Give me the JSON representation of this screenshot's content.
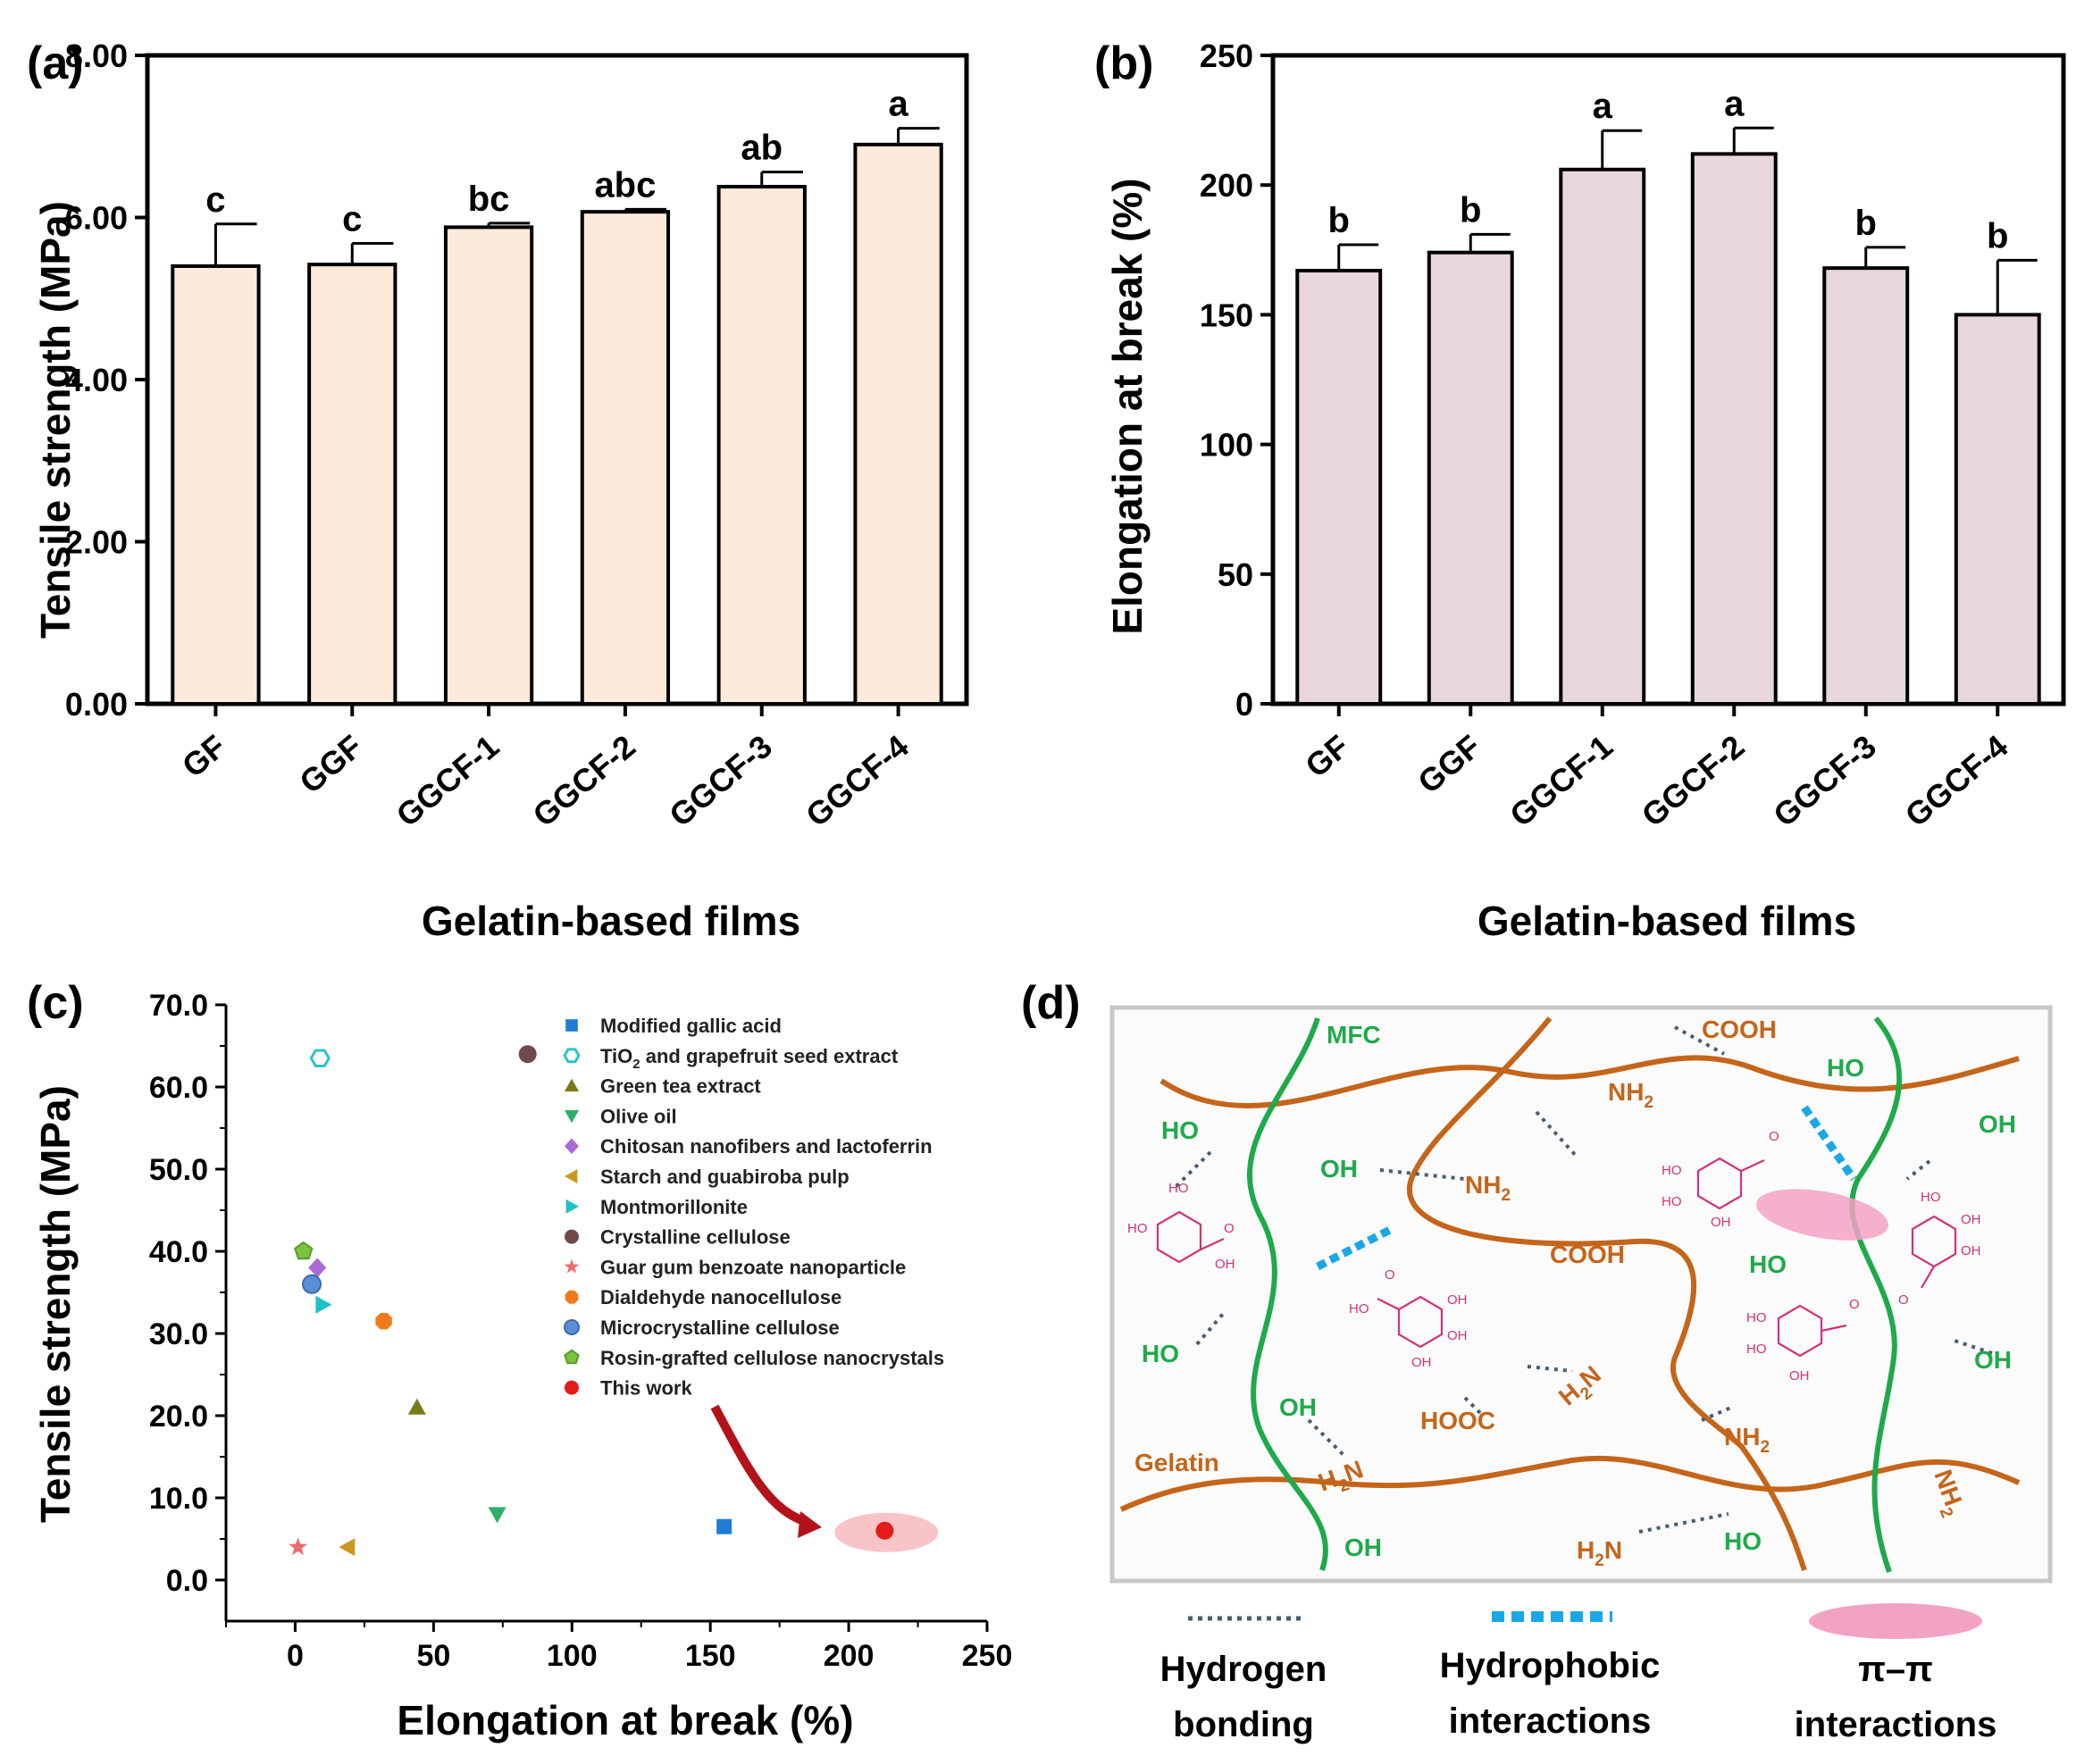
{
  "panels": [
    "(a)",
    "(b)",
    "(c)",
    "(d)"
  ],
  "chart_data": [
    {
      "id": "a",
      "type": "bar",
      "categories": [
        "GF",
        "GGF",
        "GGCF-1",
        "GGCF-2",
        "GGCF-3",
        "GGCF-4"
      ],
      "values": [
        5.4,
        5.42,
        5.88,
        6.07,
        6.38,
        6.9
      ],
      "errors": [
        0.52,
        0.26,
        0.05,
        0.03,
        0.18,
        0.2
      ],
      "letters": [
        "c",
        "c",
        "bc",
        "abc",
        "ab",
        "a"
      ],
      "ylim": [
        0,
        8
      ],
      "yticks": [
        "0.00",
        "2.00",
        "4.00",
        "6.00",
        "8.00"
      ],
      "xlabel": "Gelatin-based films",
      "ylabel": "Tensile strength (MPa)",
      "bar_color": "#fdeadb"
    },
    {
      "id": "b",
      "type": "bar",
      "categories": [
        "GF",
        "GGF",
        "GGCF-1",
        "GGCF-2",
        "GGCF-3",
        "GGCF-4"
      ],
      "values": [
        167,
        174,
        206,
        212,
        168,
        150
      ],
      "errors": [
        10,
        7,
        15,
        10,
        8,
        21
      ],
      "letters": [
        "b",
        "b",
        "a",
        "a",
        "b",
        "b"
      ],
      "ylim": [
        0,
        250
      ],
      "yticks": [
        "0",
        "50",
        "100",
        "150",
        "200",
        "250"
      ],
      "xlabel": "Gelatin-based films",
      "ylabel": "Elongation at break (%)",
      "bar_color": "#e8d6de"
    },
    {
      "id": "c",
      "type": "scatter",
      "xlabel": "Elongation at break (%)",
      "ylabel": "Tensile strength (MPa)",
      "xlim": [
        -25,
        250
      ],
      "ylim": [
        -5,
        70
      ],
      "xticks": [
        "0",
        "50",
        "100",
        "150",
        "200",
        "250"
      ],
      "yticks": [
        "0.0",
        "10.0",
        "20.0",
        "30.0",
        "40.0",
        "50.0",
        "60.0",
        "70.0"
      ],
      "series": [
        {
          "name": "Modified gallic acid",
          "marker": "square",
          "color": "#1f7bd6",
          "x": 155,
          "y": 6.5
        },
        {
          "name": "TiO2 and grapefruit seed extract",
          "marker": "hex-open",
          "color": "#2cc4c9",
          "x": 9,
          "y": 63.5
        },
        {
          "name": "Green tea extract",
          "marker": "triangle-up",
          "color": "#7a7a1a",
          "x": 44,
          "y": 21
        },
        {
          "name": "Olive oil",
          "marker": "triangle-down",
          "color": "#2fb06a",
          "x": 73,
          "y": 8
        },
        {
          "name": "Chitosan nanofibers and lactoferrin",
          "marker": "diamond",
          "color": "#a86ad6",
          "x": 8,
          "y": 38
        },
        {
          "name": "Starch and guabiroba pulp",
          "marker": "triangle-left",
          "color": "#c99a1f",
          "x": 19,
          "y": 4
        },
        {
          "name": "Montmorillonite",
          "marker": "triangle-right",
          "color": "#1fc1c9",
          "x": 10,
          "y": 33.5
        },
        {
          "name": "Crystalline cellulose",
          "marker": "circle",
          "color": "#6e4a4a",
          "x": 84,
          "y": 64
        },
        {
          "name": "Guar gum benzoate nanoparticle",
          "marker": "star",
          "color": "#ef6b6b",
          "x": 1,
          "y": 4
        },
        {
          "name": "Dialdehyde nanocellulose",
          "marker": "octagon",
          "color": "#f07b1a",
          "x": 32,
          "y": 31.5
        },
        {
          "name": "Microcrystalline cellulose",
          "marker": "circle-shaded",
          "color": "#5a8fd6",
          "x": 6,
          "y": 36
        },
        {
          "name": "Rosin-grafted cellulose nanocrystals",
          "marker": "pentagon",
          "color": "#7ac43a",
          "x": 3,
          "y": 40
        },
        {
          "name": "This work",
          "marker": "circle",
          "color": "#e31b1b",
          "x": 213,
          "y": 6
        }
      ],
      "legend_labels": [
        {
          "pre": "Modified gallic acid"
        },
        {
          "pre": "TiO",
          "sub": "2",
          "post": " and grapefruit seed extract"
        },
        {
          "pre": "Green tea extract"
        },
        {
          "pre": "Olive oil"
        },
        {
          "pre": "Chitosan nanofibers and lactoferrin"
        },
        {
          "pre": "Starch and guabiroba pulp"
        },
        {
          "pre": "Montmorillonite"
        },
        {
          "pre": "Crystalline cellulose"
        },
        {
          "pre": "Guar gum benzoate nanoparticle"
        },
        {
          "pre": "Dialdehyde nanocellulose"
        },
        {
          "pre": "Microcrystalline cellulose"
        },
        {
          "pre": "Rosin-grafted cellulose nanocrystals"
        },
        {
          "pre": "This work"
        }
      ]
    }
  ],
  "diagram_d": {
    "labels": {
      "mfc": "MFC",
      "gelatin": "Gelatin",
      "cooh": "COOH",
      "hooc": "HOOC",
      "nh2_pre": "NH",
      "nh2_sub": "2",
      "h2n_pre": "H",
      "h2n_sub": "2",
      "h2n_post": "N",
      "ho": "HO",
      "oh": "OH"
    },
    "molecule_labels": {
      "ho": "HO",
      "oh": "OH",
      "o": "O"
    },
    "legend": [
      {
        "line1": "Hydrogen",
        "line2": "bonding",
        "color": "#4a5c70"
      },
      {
        "line1": "Hydrophobic",
        "line2": "interactions",
        "color": "#1aa7e6"
      },
      {
        "line1": "π–π",
        "line2": "interactions",
        "color": "#f2a2c3"
      }
    ]
  }
}
